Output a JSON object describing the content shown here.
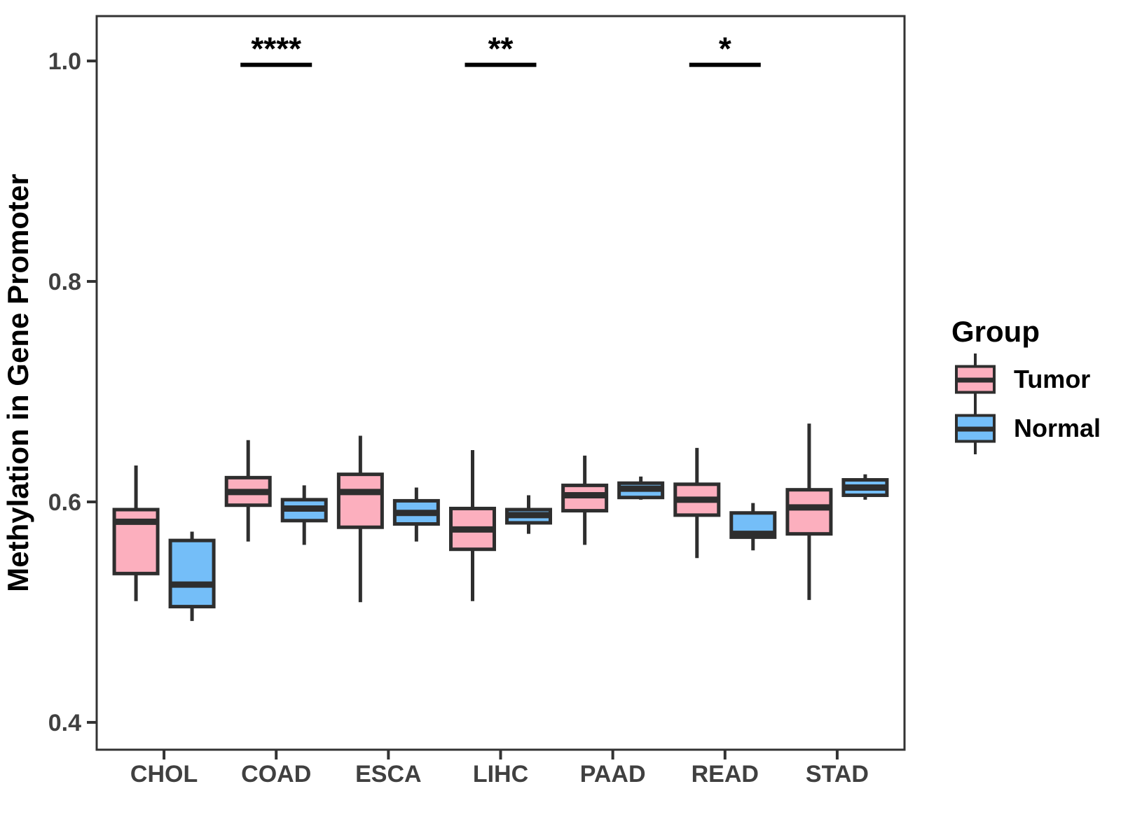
{
  "chart_data": {
    "type": "boxplot",
    "title": "",
    "xlabel": "",
    "ylabel": "Methylation in Gene Promoter",
    "ylim": [
      0.3752,
      1.0407
    ],
    "yticks": [
      0.4,
      0.6,
      0.8,
      1.0
    ],
    "ytick_labels": [
      "0.4",
      "0.6",
      "0.8",
      "1.0"
    ],
    "grid": false,
    "legend_position": "right",
    "categories": [
      "CHOL",
      "COAD",
      "ESCA",
      "LIHC",
      "PAAD",
      "READ",
      "STAD"
    ],
    "series": [
      {
        "name": "Tumor",
        "fill_color": "#FCAFBE",
        "boxes": [
          {
            "category": "CHOL",
            "min": 0.51,
            "q1": 0.535,
            "median": 0.582,
            "q3": 0.593,
            "max": 0.633
          },
          {
            "category": "COAD",
            "min": 0.564,
            "q1": 0.597,
            "median": 0.609,
            "q3": 0.622,
            "max": 0.656
          },
          {
            "category": "ESCA",
            "min": 0.509,
            "q1": 0.577,
            "median": 0.609,
            "q3": 0.625,
            "max": 0.66
          },
          {
            "category": "LIHC",
            "min": 0.51,
            "q1": 0.557,
            "median": 0.575,
            "q3": 0.594,
            "max": 0.647
          },
          {
            "category": "PAAD",
            "min": 0.561,
            "q1": 0.592,
            "median": 0.606,
            "q3": 0.615,
            "max": 0.642
          },
          {
            "category": "READ",
            "min": 0.549,
            "q1": 0.588,
            "median": 0.602,
            "q3": 0.616,
            "max": 0.649
          },
          {
            "category": "STAD",
            "min": 0.511,
            "q1": 0.571,
            "median": 0.595,
            "q3": 0.611,
            "max": 0.671
          }
        ]
      },
      {
        "name": "Normal",
        "fill_color": "#74BEF8",
        "boxes": [
          {
            "category": "CHOL",
            "min": 0.492,
            "q1": 0.505,
            "median": 0.525,
            "q3": 0.565,
            "max": 0.573
          },
          {
            "category": "COAD",
            "min": 0.561,
            "q1": 0.583,
            "median": 0.594,
            "q3": 0.602,
            "max": 0.615
          },
          {
            "category": "ESCA",
            "min": 0.564,
            "q1": 0.58,
            "median": 0.59,
            "q3": 0.601,
            "max": 0.613
          },
          {
            "category": "LIHC",
            "min": 0.571,
            "q1": 0.581,
            "median": 0.588,
            "q3": 0.593,
            "max": 0.606
          },
          {
            "category": "PAAD",
            "min": 0.602,
            "q1": 0.604,
            "median": 0.612,
            "q3": 0.617,
            "max": 0.623
          },
          {
            "category": "READ",
            "min": 0.556,
            "q1": 0.568,
            "median": 0.571,
            "q3": 0.59,
            "max": 0.599
          },
          {
            "category": "STAD",
            "min": 0.602,
            "q1": 0.606,
            "median": 0.613,
            "q3": 0.62,
            "max": 0.625
          }
        ]
      }
    ],
    "annotations": [
      {
        "category": "COAD",
        "label": "****",
        "line_y": 0.9965
      },
      {
        "category": "LIHC",
        "label": "**",
        "line_y": 0.9965
      },
      {
        "category": "READ",
        "label": "*",
        "line_y": 0.9965
      }
    ],
    "legend": {
      "title": "Group",
      "items": [
        {
          "label": "Tumor",
          "color": "#FCAFBE"
        },
        {
          "label": "Normal",
          "color": "#74BEF8"
        }
      ]
    },
    "colors": {
      "box_stroke": "#2E2E2E",
      "panel_border": "#333333",
      "axis_text": "#404040",
      "title_text": "#000000",
      "annotation": "#000000"
    }
  },
  "layout_note": ""
}
